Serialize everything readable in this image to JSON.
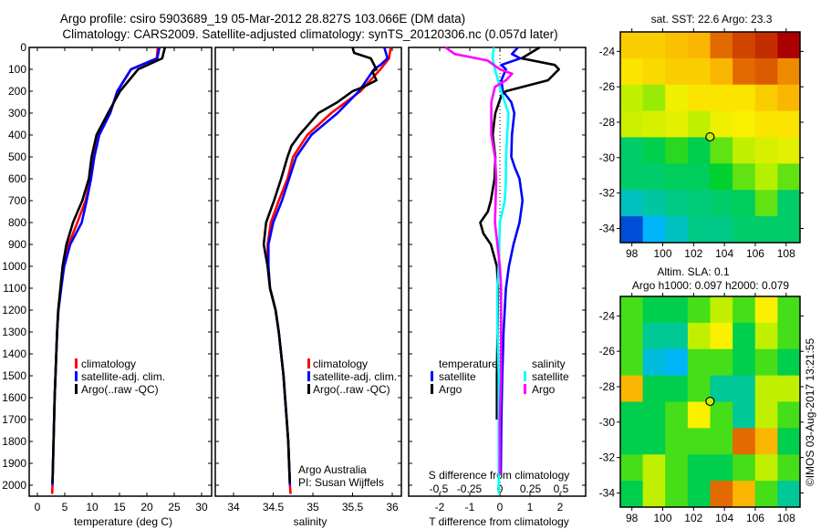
{
  "title_line1": "Argo profile: csiro 5903689_19 05-Mar-2012 28.827S 103.066E (DM data)",
  "title_line2": "Climatology: CARS2009. Satellite-adjusted climatology: synTS_20120306.nc (0.057d later)",
  "credit": "Argo Australia",
  "pi": "PI: Susan Wijffels",
  "timestamp": "©IMOS 03-Aug-2017 13:21:55",
  "colors": {
    "climatology": "#ff0000",
    "satellite": "#0000ff",
    "argo": "#000000",
    "sal_satellite": "#00ffff",
    "sal_argo": "#ff00ff"
  },
  "chart_data": {
    "type": "line",
    "depth_axis": {
      "ticks": [
        0,
        100,
        200,
        300,
        400,
        500,
        600,
        700,
        800,
        900,
        1000,
        1100,
        1200,
        1300,
        1400,
        1500,
        1600,
        1700,
        1800,
        1900,
        2000
      ],
      "range": [
        0,
        2045
      ]
    },
    "temperature": {
      "xlabel": "temperature (deg C)",
      "xlim": [
        -1.5,
        31.8
      ],
      "xticks": [
        0,
        5,
        10,
        15,
        20,
        25,
        30
      ],
      "legend": [
        "climatology",
        "satellite-adj. clim.",
        "Argo(..raw -QC)"
      ],
      "series": [
        {
          "name": "climatology",
          "color": "#ff0000",
          "depth": [
            0,
            50,
            100,
            200,
            300,
            400,
            500,
            600,
            700,
            800,
            900,
            1000,
            1100,
            1200,
            1300,
            1400,
            1500,
            1600,
            1700,
            1800,
            1900,
            2000,
            2040
          ],
          "values": [
            22.0,
            21.8,
            17.1,
            14.6,
            13.3,
            11.2,
            10.3,
            9.7,
            8.8,
            7.3,
            5.7,
            4.8,
            4.3,
            3.8,
            3.6,
            3.45,
            3.3,
            3.15,
            3.05,
            2.95,
            2.85,
            2.75,
            2.7
          ]
        },
        {
          "name": "satellite-adj. clim.",
          "color": "#0000ff",
          "depth": [
            0,
            50,
            100,
            200,
            300,
            400,
            500,
            600,
            700,
            800,
            900,
            1000,
            1100,
            1200,
            1300,
            1400,
            1500,
            1600,
            1700,
            1800,
            1900,
            2000
          ],
          "values": [
            22.3,
            21.9,
            17.1,
            14.6,
            13.3,
            11.3,
            10.4,
            9.8,
            9.0,
            8.1,
            6.0,
            4.9,
            4.35,
            3.85,
            3.6,
            3.45,
            3.3,
            3.15,
            3.05,
            2.95,
            2.85,
            2.75
          ]
        },
        {
          "name": "Argo(..raw -QC)",
          "color": "#000000",
          "depth": [
            0,
            50,
            100,
            200,
            300,
            400,
            500,
            600,
            700,
            800,
            900,
            1000,
            1100,
            1200,
            1300,
            1400,
            1500,
            1600,
            1700,
            1800,
            1900,
            1990
          ],
          "values": [
            23.3,
            22.8,
            18.4,
            15.1,
            12.9,
            10.8,
            9.9,
            9.4,
            8.2,
            6.5,
            5.3,
            4.6,
            4.2,
            3.8,
            3.6,
            3.45,
            3.3,
            3.15,
            3.05,
            2.95,
            2.85,
            2.75
          ]
        }
      ]
    },
    "salinity": {
      "xlabel": "salinity",
      "xlim": [
        33.8,
        36.1
      ],
      "xticks": [
        34,
        34.5,
        35,
        35.5,
        36
      ],
      "legend": [
        "climatology",
        "satellite-adj. clim.",
        "Argo(..raw -QC)"
      ],
      "series": [
        {
          "name": "climatology",
          "color": "#ff0000",
          "depth": [
            0,
            50,
            100,
            200,
            300,
            400,
            500,
            600,
            700,
            800,
            900,
            1000,
            1100,
            1200,
            1300,
            1400,
            1500,
            1600,
            1700,
            1800,
            1900,
            2000,
            2040
          ],
          "values": [
            35.98,
            35.96,
            35.85,
            35.6,
            35.23,
            34.93,
            34.75,
            34.68,
            34.57,
            34.47,
            34.43,
            34.43,
            34.46,
            34.53,
            34.57,
            34.6,
            34.63,
            34.65,
            34.67,
            34.69,
            34.7,
            34.71,
            34.72
          ]
        },
        {
          "name": "satellite-adj. clim.",
          "color": "#0000ff",
          "depth": [
            0,
            50,
            80,
            100,
            200,
            300,
            400,
            500,
            600,
            700,
            800,
            900,
            1000,
            1100,
            1200,
            1300,
            1400,
            1500,
            1600,
            1700,
            1800,
            1900,
            2000
          ],
          "values": [
            35.9,
            35.94,
            35.85,
            35.77,
            35.58,
            35.31,
            34.98,
            34.79,
            34.7,
            34.61,
            34.5,
            34.44,
            34.44,
            34.46,
            34.53,
            34.57,
            34.6,
            34.63,
            34.65,
            34.67,
            34.69,
            34.7,
            34.71
          ]
        },
        {
          "name": "Argo(..raw -QC)",
          "color": "#000000",
          "depth": [
            0,
            25,
            50,
            100,
            110,
            150,
            180,
            200,
            250,
            300,
            400,
            450,
            500,
            600,
            700,
            800,
            900,
            1000,
            1100,
            1200,
            1300,
            1400,
            1500,
            1600,
            1700,
            1800,
            1900,
            1990
          ],
          "values": [
            35.5,
            35.52,
            35.73,
            35.8,
            35.75,
            35.8,
            35.64,
            35.5,
            35.31,
            35.07,
            34.83,
            34.73,
            34.68,
            34.6,
            34.51,
            34.41,
            34.38,
            34.43,
            34.46,
            34.53,
            34.57,
            34.6,
            34.63,
            34.65,
            34.67,
            34.69,
            34.7,
            34.71
          ]
        }
      ]
    },
    "difference": {
      "xlabel": "T difference from climatology",
      "xlabel2": "S difference from climatology",
      "t_xlim": [
        -3.1,
        2.8
      ],
      "t_xticks": [
        -2,
        -1,
        0,
        1,
        2
      ],
      "s_xticks": [
        -0.5,
        -0.25,
        0,
        0.25,
        0.5
      ],
      "s_tick_labels": [
        "-0.5",
        "-0.25",
        "0",
        "0.25",
        "0.5"
      ],
      "legend": {
        "temperature_title": "temperature",
        "salinity_title": "salinity",
        "satellite": "satellite",
        "argo": "Argo"
      },
      "series": [
        {
          "name": "T satellite",
          "var": "T",
          "color": "#0000ff",
          "depth": [
            0,
            30,
            50,
            80,
            100,
            150,
            200,
            250,
            300,
            400,
            500,
            550,
            600,
            700,
            800,
            900,
            1000,
            1100,
            1300,
            1500,
            1700,
            1950
          ],
          "values": [
            0.6,
            0.4,
            0.68,
            0.05,
            0.2,
            0.05,
            0.1,
            0.38,
            0.48,
            0.4,
            0.38,
            0.5,
            0.65,
            0.75,
            0.65,
            0.45,
            0.3,
            0.2,
            0.12,
            0.08,
            0.05,
            0.03
          ]
        },
        {
          "name": "T Argo",
          "var": "T",
          "color": "#000000",
          "depth": [
            0,
            50,
            80,
            100,
            150,
            200,
            220,
            300,
            350,
            400,
            500,
            600,
            700,
            750,
            800,
            850,
            900,
            1000,
            1100,
            1300,
            1500,
            1700
          ],
          "values": [
            1.32,
            0.72,
            1.82,
            1.96,
            1.6,
            0.2,
            0.05,
            -0.15,
            -0.2,
            -0.24,
            -0.15,
            -0.18,
            -0.3,
            -0.4,
            -0.65,
            -0.55,
            -0.3,
            -0.1,
            -0.06,
            -0.08,
            -0.1,
            -0.1
          ]
        },
        {
          "name": "S satellite",
          "var": "S",
          "color": "#00ffff",
          "depth": [
            0,
            50,
            100,
            200,
            300,
            400,
            500,
            600,
            700,
            800,
            1000,
            1100,
            1300,
            1500,
            1700,
            2040
          ],
          "values": [
            -0.05,
            -0.06,
            -0.04,
            0.01,
            0.07,
            0.06,
            0.05,
            0.05,
            0.04,
            0.0,
            -0.01,
            -0.02,
            -0.02,
            -0.01,
            -0.01,
            -0.01
          ]
        },
        {
          "name": "S Argo",
          "var": "S",
          "color": "#ff00ff",
          "depth": [
            0,
            30,
            60,
            100,
            120,
            150,
            180,
            250,
            300,
            400,
            500,
            600,
            800,
            1000,
            1100,
            1300,
            1500,
            1700,
            1950
          ],
          "values": [
            -0.445,
            -0.37,
            -0.1,
            0.0,
            0.1,
            0.05,
            -0.04,
            -0.07,
            -0.07,
            -0.07,
            -0.04,
            -0.03,
            -0.04,
            0.0,
            0.01,
            0.01,
            0.01,
            0.0,
            0.0
          ]
        }
      ]
    },
    "sst_map": {
      "type": "heatmap",
      "title": "sat. SST: 22.6 Argo: 23.3",
      "lon_range": [
        97.25,
        108.9
      ],
      "lat_range": [
        -34.8,
        -22.9
      ],
      "xticks": [
        98,
        100,
        102,
        104,
        106,
        108
      ],
      "yticks": [
        -24,
        -26,
        -28,
        -30,
        -32,
        -34
      ],
      "float_position": {
        "lon": 103.066,
        "lat": -28.827
      },
      "value_range": [
        20,
        25
      ],
      "grid": [
        [
          23.8,
          23.8,
          23.9,
          24.0,
          24.5,
          24.7,
          24.8,
          25.0
        ],
        [
          23.6,
          23.7,
          23.8,
          23.8,
          24.0,
          24.5,
          24.6,
          24.3
        ],
        [
          23.0,
          22.8,
          23.4,
          23.6,
          23.6,
          23.6,
          23.8,
          24.0
        ],
        [
          23.1,
          23.2,
          23.3,
          23.0,
          23.4,
          23.5,
          23.6,
          23.6
        ],
        [
          21.8,
          22.0,
          22.4,
          22.0,
          22.6,
          23.0,
          23.2,
          23.3
        ],
        [
          21.8,
          21.8,
          21.9,
          21.9,
          22.2,
          22.6,
          22.9,
          22.6
        ],
        [
          21.2,
          21.4,
          21.6,
          21.7,
          21.8,
          21.9,
          22.6,
          21.8
        ],
        [
          20.2,
          20.8,
          21.2,
          21.6,
          21.6,
          21.8,
          21.8,
          21.8
        ]
      ]
    },
    "sla_map": {
      "type": "heatmap",
      "title": "Altim. SLA: 0.1",
      "subtitle": "Argo h1000: 0.097 h2000: 0.079",
      "lon_range": [
        97.25,
        108.9
      ],
      "lat_range": [
        -34.8,
        -22.9
      ],
      "xticks": [
        98,
        100,
        102,
        104,
        106,
        108
      ],
      "yticks": [
        -24,
        -26,
        -28,
        -30,
        -32,
        -34
      ],
      "float_position": {
        "lon": 103.066,
        "lat": -28.827
      },
      "value_range": [
        -0.2,
        0.3
      ],
      "grid": [
        [
          0.05,
          0.0,
          0.0,
          0.05,
          0.1,
          0.05,
          0.15,
          0.05
        ],
        [
          0.05,
          -0.05,
          -0.05,
          0.1,
          0.15,
          0.0,
          0.1,
          0.05
        ],
        [
          0.05,
          -0.1,
          -0.12,
          0.05,
          0.05,
          0.0,
          0.05,
          0.0
        ],
        [
          0.2,
          0.0,
          0.0,
          0.05,
          -0.05,
          -0.05,
          0.1,
          0.1
        ],
        [
          0.0,
          0.0,
          0.05,
          0.15,
          0.05,
          -0.05,
          0.1,
          0.05
        ],
        [
          0.0,
          0.0,
          0.05,
          0.05,
          0.05,
          0.25,
          0.2,
          0.0
        ],
        [
          0.05,
          0.1,
          0.05,
          0.0,
          0.0,
          0.05,
          0.1,
          0.05
        ],
        [
          0.0,
          0.1,
          0.05,
          0.0,
          0.25,
          0.2,
          0.05,
          -0.05
        ]
      ]
    }
  }
}
